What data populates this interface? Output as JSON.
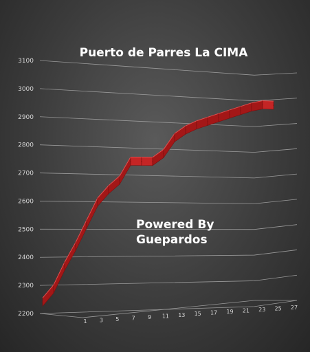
{
  "chart_data": {
    "type": "area",
    "title": "Puerto de Parres La CIMA",
    "annotation": [
      "Powered By",
      "Guepardos"
    ],
    "y_ticks": [
      "2200",
      "2300",
      "2400",
      "2500",
      "2600",
      "2700",
      "2800",
      "2900",
      "3000",
      "3100"
    ],
    "x_ticks": [
      "1",
      "3",
      "5",
      "7",
      "9",
      "11",
      "13",
      "15",
      "17",
      "19",
      "21",
      "23",
      "25",
      "27"
    ],
    "ylim": [
      2200,
      3100
    ],
    "xlim": [
      1,
      27
    ],
    "grid": true,
    "x": [
      1,
      2,
      3,
      4,
      5,
      6,
      7,
      8,
      9,
      10,
      11,
      12,
      13,
      14,
      15,
      16,
      17,
      18,
      19,
      20,
      21,
      22
    ],
    "values": [
      2255,
      2300,
      2380,
      2450,
      2530,
      2610,
      2655,
      2690,
      2760,
      2760,
      2760,
      2790,
      2850,
      2880,
      2900,
      2915,
      2930,
      2945,
      2960,
      2975,
      2985,
      2985
    ],
    "series_color": "#b01c1c"
  }
}
